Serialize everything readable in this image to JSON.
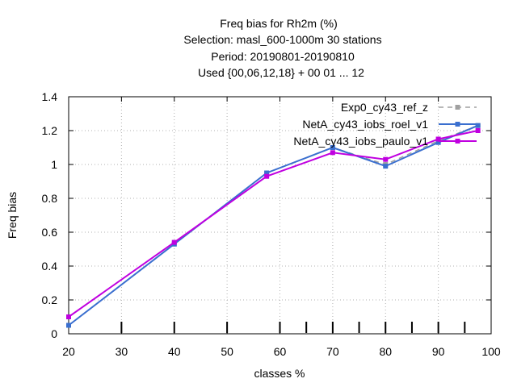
{
  "chart_data": {
    "type": "line",
    "title_lines": [
      "Freq bias  for Rh2m (%)",
      "Selection: masl_600-1000m     30 stations",
      "Period: 20190801-20190810",
      "Used {00,06,12,18} + 00 01 ... 12"
    ],
    "xlabel": "classes %",
    "ylabel": "Freq bias",
    "xlim": [
      20,
      100
    ],
    "ylim": [
      0,
      1.4
    ],
    "xticks": [
      20,
      30,
      40,
      50,
      60,
      70,
      80,
      90,
      100
    ],
    "yticks": [
      0,
      0.2,
      0.4,
      0.6,
      0.8,
      1,
      1.2,
      1.4
    ],
    "ytick_labels": [
      "0",
      "0.2",
      "0.4",
      "0.6",
      "0.8",
      "1",
      "1.2",
      "1.4"
    ],
    "grid": true,
    "legend_position": "top-right",
    "class_markers": [
      30,
      40,
      50,
      60,
      65,
      70,
      75,
      80,
      85,
      90,
      95
    ],
    "series": [
      {
        "name": "Exp0_cy43_ref_z",
        "color": "#a0a0a0",
        "dashed": true,
        "x": [
          20,
          40,
          57.5,
          70,
          80,
          90,
          97.5
        ],
        "y": [
          0.05,
          0.53,
          0.95,
          1.1,
          1.0,
          1.14,
          1.23
        ]
      },
      {
        "name": "NetA_cy43_iobs_roel_v1",
        "color": "#3a6fcf",
        "dashed": false,
        "x": [
          20,
          40,
          57.5,
          70,
          80,
          90,
          97.5
        ],
        "y": [
          0.05,
          0.53,
          0.95,
          1.1,
          0.99,
          1.13,
          1.23
        ]
      },
      {
        "name": "NetA_cy43_iobs_paulo_v1",
        "color": "#c000e0",
        "dashed": false,
        "x": [
          20,
          40,
          57.5,
          70,
          80,
          90,
          97.5
        ],
        "y": [
          0.1,
          0.54,
          0.93,
          1.07,
          1.03,
          1.15,
          1.2
        ]
      }
    ]
  }
}
